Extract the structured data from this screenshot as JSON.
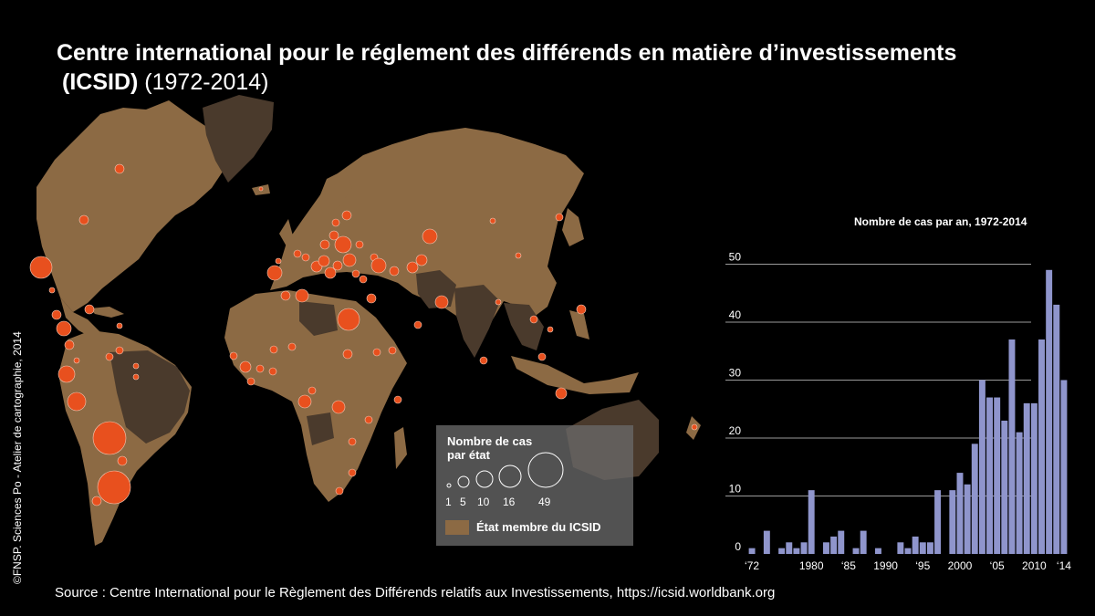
{
  "title": {
    "line1": "Centre international pour le réglement des différends en matière d’investissements",
    "acronym": "(ICSID)",
    "years": "(1972-2014)"
  },
  "credit": "©FNSP. Sciences Po - Atelier de cartographie, 2014",
  "source": "Source : Centre International pour le Règlement des Différends relatifs aux Investissements, https://icsid.worldbank.org",
  "legend": {
    "size_title": "Nombre de cas par état",
    "size_values": [
      "1",
      "5",
      "10",
      "16",
      "49"
    ],
    "member_label": "État membre du ICSID"
  },
  "colors": {
    "member": "#8c6a44",
    "nonmember": "#4a3a2c",
    "circle": "#e8501e",
    "bar": "#8f95cc"
  },
  "chart_data": {
    "type": "bar",
    "title": "Nombre de cas par an, 1972-2014",
    "x": [
      1972,
      1973,
      1974,
      1975,
      1976,
      1977,
      1978,
      1979,
      1980,
      1981,
      1982,
      1983,
      1984,
      1985,
      1986,
      1987,
      1988,
      1989,
      1990,
      1991,
      1992,
      1993,
      1994,
      1995,
      1996,
      1997,
      1998,
      1999,
      2000,
      2001,
      2002,
      2003,
      2004,
      2005,
      2006,
      2007,
      2008,
      2009,
      2010,
      2011,
      2012,
      2013,
      2014
    ],
    "values": [
      1,
      0,
      4,
      0,
      1,
      2,
      1,
      2,
      11,
      0,
      2,
      3,
      4,
      0,
      1,
      4,
      0,
      1,
      0,
      0,
      2,
      1,
      3,
      2,
      2,
      11,
      0,
      11,
      14,
      12,
      19,
      30,
      27,
      27,
      23,
      37,
      21,
      26,
      26,
      37,
      49,
      43,
      30
    ],
    "tick_labels": [
      "‘72",
      "1980",
      "‘85",
      "1990",
      "‘95",
      "2000",
      "‘05",
      "2010",
      "‘14"
    ],
    "tick_years": [
      1972,
      1980,
      1985,
      1990,
      1995,
      2000,
      2005,
      2010,
      2014
    ],
    "y_ticks": [
      0,
      10,
      20,
      30,
      40,
      50
    ],
    "ylim": [
      0,
      52
    ],
    "grid": "horizontal"
  }
}
